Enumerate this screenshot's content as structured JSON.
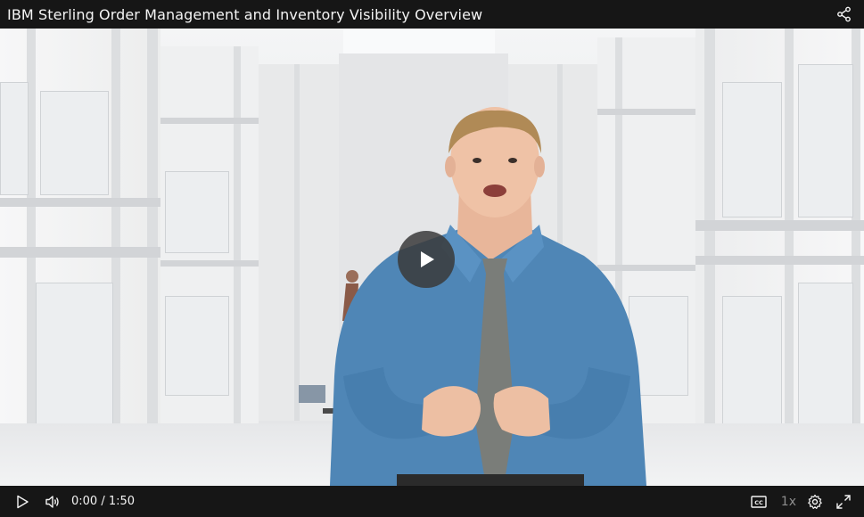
{
  "player": {
    "title": "IBM Sterling Order Management and Inventory Visibility Overview",
    "icons": {
      "share": "share-icon",
      "play_overlay": "play-icon",
      "play": "play-icon",
      "volume": "volume-icon",
      "captions": "closed-caption-icon",
      "settings": "gear-icon",
      "fullscreen": "fullscreen-icon"
    }
  },
  "controls": {
    "time": "0:00 / 1:50",
    "speed": "1x"
  },
  "colors": {
    "bar_bg": "#161616",
    "text": "#f4f4f4",
    "muted": "#8d8d8d",
    "shirt": "#4d86b8",
    "tie": "#777a76"
  }
}
